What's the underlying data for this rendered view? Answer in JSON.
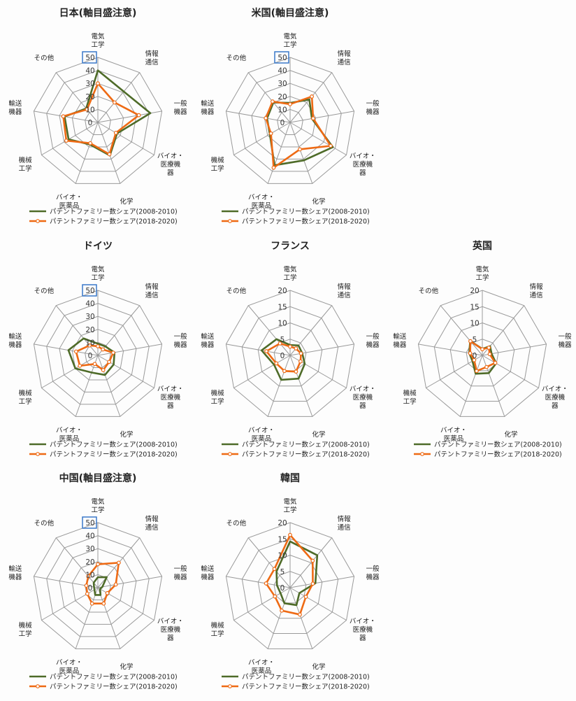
{
  "colors": {
    "series_2008_2010": "#4e6b28",
    "series_2018_2020": "#ee6a14",
    "grid": "#9a9a9a",
    "highlight_box": "#3a78c9"
  },
  "chart_data": [
    {
      "type": "radar",
      "title": "日本(軸目盛注意)",
      "rmax": 50,
      "ticks": [
        "0",
        "10",
        "20",
        "30",
        "40",
        "50"
      ],
      "highlight_max_tick": true,
      "axes": [
        "電気\n工学",
        "情報\n通信",
        "一般\n機器",
        "バイオ・\n医療機\n器",
        "化学",
        "バイオ・\n医薬品",
        "機械\n工学",
        "輸送\n機器",
        "その他"
      ],
      "series": [
        {
          "name": "パテントファミリー数シェア(2008-2010)",
          "values": [
            40,
            31,
            41,
            17,
            27,
            18,
            26,
            26,
            14
          ]
        },
        {
          "name": "パテントファミリー数シェア(2018-2020)",
          "values": [
            30,
            20,
            32,
            16,
            26,
            17,
            28,
            27,
            13
          ]
        }
      ]
    },
    {
      "type": "radar",
      "title": "米国(軸目盛注意)",
      "rmax": 50,
      "ticks": [
        "0",
        "10",
        "20",
        "30",
        "40",
        "50"
      ],
      "highlight_max_tick": true,
      "axes": [
        "電気\n工学",
        "情報\n通信",
        "一般\n機器",
        "バイオ・\n医療機\n器",
        "化学",
        "バイオ・\n医薬品",
        "機械\n工学",
        "輸送\n機器",
        "その他"
      ],
      "series": [
        {
          "name": "パテントファミリー数シェア(2008-2010)",
          "values": [
            15,
            23,
            17,
            38,
            31,
            35,
            18,
            18,
            20
          ]
        },
        {
          "name": "パテントファミリー数シェア(2018-2020)",
          "values": [
            14,
            26,
            18,
            36,
            22,
            37,
            17,
            19,
            21
          ]
        }
      ]
    },
    {
      "type": "radar",
      "title": "ドイツ",
      "rmax": 50,
      "ticks": [
        "0",
        "10",
        "20",
        "30",
        "40",
        "50"
      ],
      "highlight_max_tick": true,
      "axes": [
        "電気\n工学",
        "情報\n通信",
        "一般\n機器",
        "バイオ・\n医療機\n器",
        "化学",
        "バイオ・\n医薬品",
        "機械\n工学",
        "輸送\n機器",
        "その他"
      ],
      "series": [
        {
          "name": "パテントファミリー数シェア(2008-2010)",
          "values": [
            9,
            9,
            13,
            14,
            16,
            14,
            20,
            23,
            17
          ]
        },
        {
          "name": "パテントファミリー数シェア(2018-2020)",
          "values": [
            7,
            6,
            12,
            10,
            12,
            7,
            16,
            17,
            10
          ]
        }
      ]
    },
    {
      "type": "radar",
      "title": "フランス",
      "rmax": 20,
      "ticks": [
        "0",
        "5",
        "10",
        "15",
        "20"
      ],
      "highlight_max_tick": false,
      "axes": [
        "電気\n工学",
        "情報\n通信",
        "一般\n機器",
        "バイオ・\n医療機\n器",
        "化学",
        "バイオ・\n医薬品",
        "機械\n工学",
        "輸送\n機器",
        "その他"
      ],
      "series": [
        {
          "name": "パテントファミリー数シェア(2008-2010)",
          "values": [
            3.2,
            4,
            3.8,
            5.2,
            7.6,
            8,
            5.7,
            8.9,
            6.5
          ]
        },
        {
          "name": "パテントファミリー数シェア(2018-2020)",
          "values": [
            2.7,
            2.8,
            3.4,
            3.7,
            5.3,
            5.1,
            4.9,
            7.4,
            4.8
          ]
        }
      ]
    },
    {
      "type": "radar",
      "title": "英国",
      "rmax": 20,
      "ticks": [
        "0",
        "5",
        "10",
        "15",
        "20"
      ],
      "highlight_max_tick": false,
      "axes": [
        "電気\n工学",
        "情報\n通信",
        "一般\n機器",
        "バイオ・\n医療機\n器",
        "化学",
        "バイオ・\n医薬品",
        "機械\n工学",
        "輸送\n機器",
        "その他"
      ],
      "series": [
        {
          "name": "パテントファミリー数シェア(2008-2010)",
          "values": [
            2,
            3.7,
            2.9,
            4.9,
            5.8,
            6,
            3.5,
            4.1,
            5.8
          ]
        },
        {
          "name": "パテントファミリー数シェア(2018-2020)",
          "values": [
            1.9,
            3.1,
            2.3,
            4.6,
            3.8,
            5.1,
            2.9,
            3.8,
            5.7
          ]
        }
      ]
    },
    {
      "type": "radar",
      "title": "中国(軸目盛注意)",
      "rmax": 50,
      "ticks": [
        "0",
        "10",
        "20",
        "30",
        "40",
        "50"
      ],
      "highlight_max_tick": true,
      "axes": [
        "電気\n工学",
        "情報\n通信",
        "一般\n機器",
        "バイオ・\n医療機\n器",
        "化学",
        "バイオ・\n医薬品",
        "機械\n工学",
        "輸送\n機器",
        "その他"
      ],
      "series": [
        {
          "name": "パテントファミリー数シェア(2008-2010)",
          "values": [
            8,
            10.6,
            3.5,
            2,
            6,
            6,
            3,
            3,
            5
          ]
        },
        {
          "name": "パテントファミリー数シェア(2018-2020)",
          "values": [
            18,
            25,
            14,
            8.4,
            13,
            13,
            9.4,
            9,
            11.5
          ]
        }
      ]
    },
    {
      "type": "radar",
      "title": "韓国",
      "rmax": 20,
      "ticks": [
        "0",
        "5",
        "10",
        "15",
        "20"
      ],
      "highlight_max_tick": false,
      "axes": [
        "電気\n工学",
        "情報\n通信",
        "一般\n機器",
        "バイオ・\n医療機\n器",
        "化学",
        "バイオ・\n医薬品",
        "機械\n工学",
        "輸送\n機器",
        "その他"
      ],
      "series": [
        {
          "name": "パテントファミリー数シェア(2008-2010)",
          "values": [
            14.2,
            13,
            7.9,
            3.3,
            5.7,
            5.1,
            3.4,
            4.1,
            6.5
          ]
        },
        {
          "name": "パテントファミリー数シェア(2018-2020)",
          "values": [
            16.2,
            10.8,
            7.1,
            5.6,
            8.8,
            7.5,
            5.4,
            7.5,
            7.5
          ]
        }
      ]
    }
  ]
}
